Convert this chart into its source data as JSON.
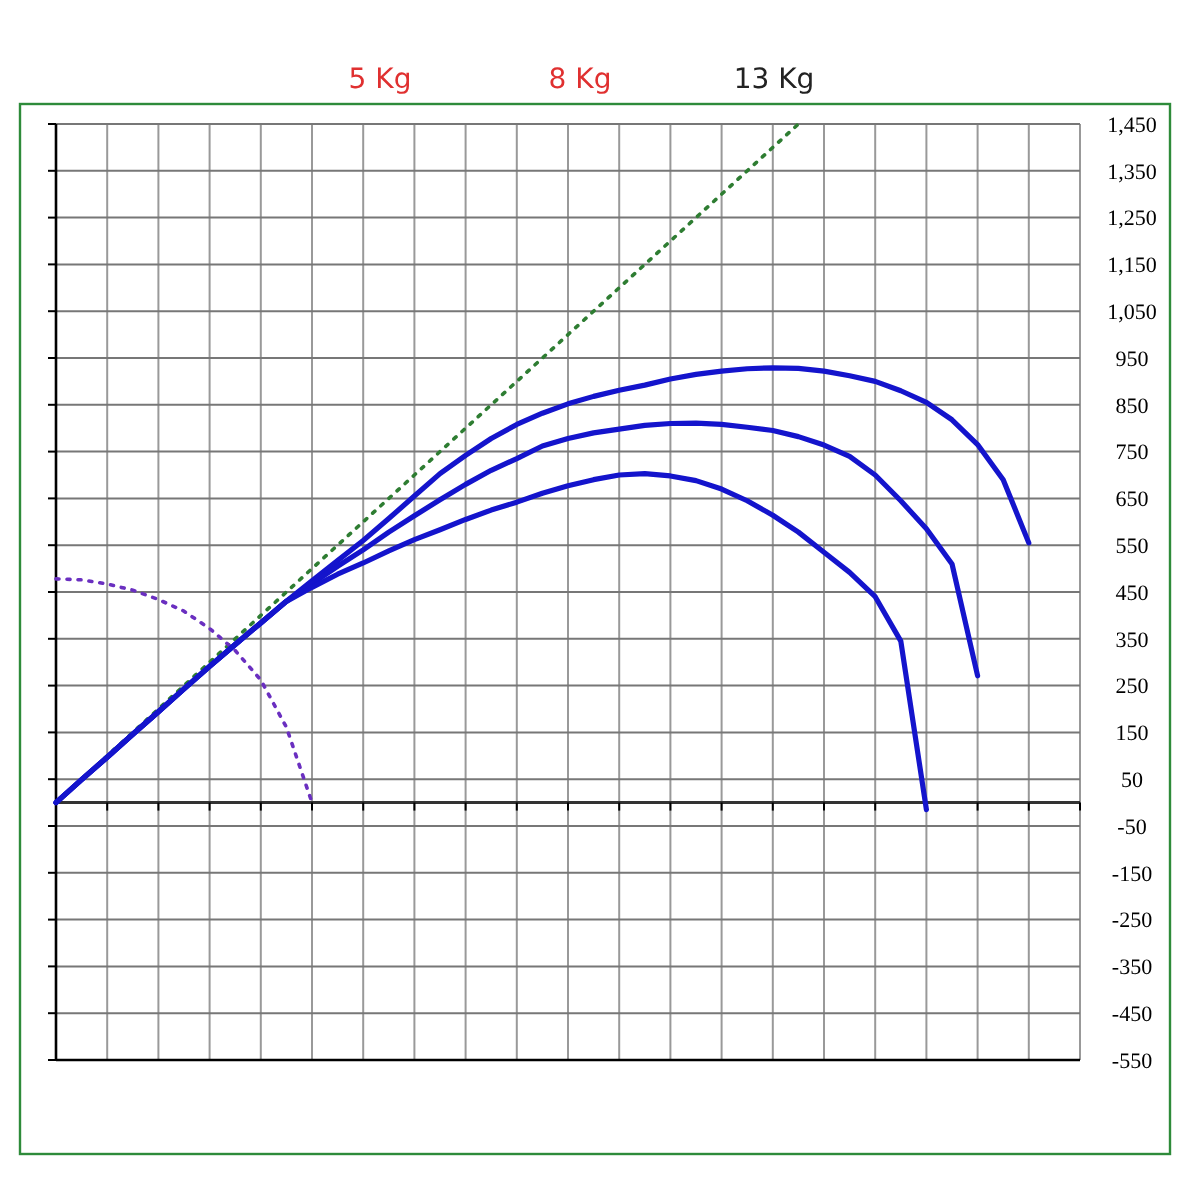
{
  "chart_data": {
    "type": "line",
    "tick_labels": "y",
    "grid": true,
    "annotations": [
      "5 Kg",
      "8 Kg",
      "13 Kg"
    ],
    "categories": [
      null,
      null,
      null,
      null,
      null,
      null,
      null,
      null,
      null,
      null,
      null,
      null,
      null,
      null,
      null,
      null,
      null,
      null,
      null,
      null,
      null,
      null,
      null,
      null,
      null,
      null,
      null,
      null,
      null,
      null,
      null,
      null,
      null,
      null,
      null,
      null,
      null,
      null,
      null,
      null,
      null
    ],
    "ylim": [
      -550,
      1450
    ],
    "yticks": [
      {
        "value": 1450,
        "label": "1,450"
      },
      {
        "value": 1350,
        "label": "1,350"
      },
      {
        "value": 1250,
        "label": "1,250"
      },
      {
        "value": 1150,
        "label": "1,150"
      },
      {
        "value": 1050,
        "label": "1,050"
      },
      950,
      850,
      750,
      650,
      550,
      450,
      350,
      250,
      150,
      50,
      -50,
      -150,
      -250,
      -350,
      -450,
      -550
    ],
    "series": [
      {
        "color": "#2e7d32",
        "line_style": "dotted",
        "values": [
          0,
          50,
          100,
          150,
          200,
          250,
          300,
          350,
          400,
          450,
          500,
          550,
          600,
          650,
          700,
          750,
          800,
          850,
          900,
          950,
          1000,
          1050,
          1100,
          1150,
          1200,
          1250,
          1300,
          1350,
          1400,
          1450,
          null,
          null,
          null,
          null,
          null,
          null,
          null,
          null,
          null,
          null,
          null
        ]
      },
      {
        "color": "#6a2fc0",
        "line_style": "dotted",
        "values": [
          478,
          476,
          467,
          454,
          434,
          409,
          372,
          325,
          262,
          161,
          0,
          null,
          null,
          null,
          null,
          null,
          null,
          null,
          null,
          null,
          null,
          null,
          null,
          null,
          null,
          null,
          null,
          null,
          null,
          null,
          null,
          null,
          null,
          null,
          null,
          null,
          null,
          null,
          null,
          null,
          null
        ]
      },
      {
        "color": "#1414cc",
        "line_style": "solid",
        "values": [
          0,
          49,
          97,
          146,
          194,
          243,
          291,
          338,
          384,
          430,
          474,
          517,
          560,
          607,
          655,
          703,
          742,
          778,
          808,
          832,
          852,
          868,
          881,
          892,
          905,
          915,
          922,
          927,
          929,
          928,
          922,
          912,
          900,
          880,
          855,
          818,
          765,
          690,
          555,
          null,
          null
        ]
      },
      {
        "color": "#1414cc",
        "line_style": "solid",
        "values": [
          0,
          49,
          97,
          146,
          194,
          243,
          291,
          338,
          384,
          430,
          468,
          505,
          540,
          578,
          613,
          647,
          680,
          710,
          735,
          762,
          778,
          790,
          798,
          806,
          810,
          811,
          808,
          802,
          795,
          782,
          764,
          740,
          700,
          645,
          585,
          510,
          271,
          null,
          null,
          null,
          null
        ]
      },
      {
        "color": "#1414cc",
        "line_style": "solid",
        "values": [
          0,
          49,
          97,
          146,
          194,
          243,
          291,
          338,
          384,
          430,
          460,
          488,
          512,
          538,
          562,
          583,
          605,
          625,
          642,
          661,
          677,
          690,
          700,
          703,
          698,
          688,
          670,
          645,
          614,
          578,
          535,
          492,
          440,
          345,
          -15,
          null,
          null,
          null,
          null,
          null,
          null
        ]
      }
    ]
  }
}
